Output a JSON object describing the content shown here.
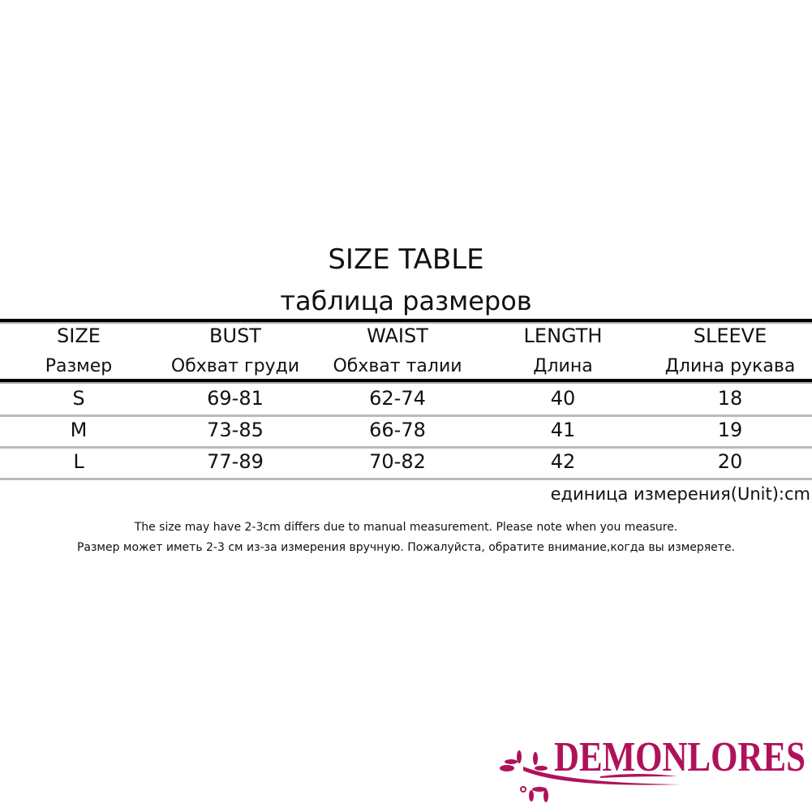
{
  "title": "SIZE TABLE",
  "subtitle": "таблица размеров",
  "table": {
    "headers": [
      {
        "en": "SIZE",
        "ru": "Размер"
      },
      {
        "en": "BUST",
        "ru": "Обхват груди"
      },
      {
        "en": "WAIST",
        "ru": "Обхват талии"
      },
      {
        "en": "LENGTH",
        "ru": "Длина"
      },
      {
        "en": "SLEEVE",
        "ru": "Длина рукава"
      }
    ],
    "rows": [
      [
        "S",
        "69-81",
        "62-74",
        "40",
        "18"
      ],
      [
        "M",
        "73-85",
        "66-78",
        "41",
        "19"
      ],
      [
        "L",
        "77-89",
        "70-82",
        "42",
        "20"
      ]
    ]
  },
  "unit": "единица измерения(Unit):cm",
  "note_en": "The size may have 2-3cm differs due to manual measurement. Please note when you measure.",
  "note_ru": "Размер может иметь 2-3 см из-за измерения вручную. Пожалуйста, обратите внимание,когда вы измеряете.",
  "logo": {
    "text": "DEMONLORES",
    "color": "#b0125a"
  }
}
